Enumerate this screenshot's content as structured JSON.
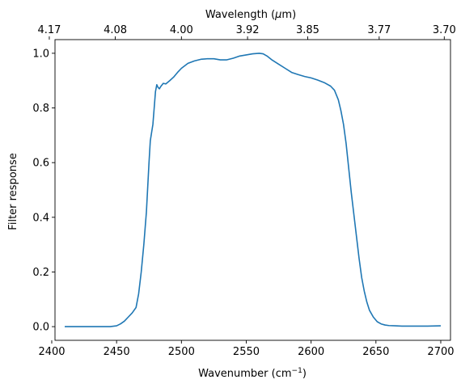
{
  "chart_data": {
    "type": "line",
    "xlabel": "Wavenumber (cm",
    "xlabel_sup": "−1",
    "xlabel_end": ")",
    "ylabel": "Filter response",
    "top_xlabel": "Wavelength (",
    "top_xlabel_mu": "μ",
    "top_xlabel_end": "m)",
    "xlim": [
      2402.5,
      2707.5
    ],
    "ylim": [
      -0.05,
      1.05
    ],
    "grid": false,
    "x_ticks": [
      2400,
      2450,
      2500,
      2550,
      2600,
      2650,
      2700
    ],
    "x_tick_labels": [
      "2400",
      "2450",
      "2500",
      "2550",
      "2600",
      "2650",
      "2700"
    ],
    "y_ticks": [
      0.0,
      0.2,
      0.4,
      0.6,
      0.8,
      1.0
    ],
    "y_tick_labels": [
      "0.0",
      "0.2",
      "0.4",
      "0.6",
      "0.8",
      "1.0"
    ],
    "top_x_tick_positions": [
      2398.1,
      2449.0,
      2500.0,
      2551.0,
      2597.4,
      2652.5,
      2702.7
    ],
    "top_x_tick_labels": [
      "4.17",
      "4.08",
      "4.00",
      "3.92",
      "3.85",
      "3.77",
      "3.70"
    ],
    "line_color": "#1f77b4",
    "series": [
      {
        "x": [
          2410,
          2420,
          2430,
          2440,
          2445,
          2450,
          2453,
          2456,
          2459,
          2462,
          2465,
          2467,
          2469,
          2471,
          2473,
          2475,
          2476,
          2477,
          2478,
          2480,
          2481,
          2482,
          2483,
          2484,
          2486,
          2488,
          2491,
          2494,
          2497,
          2500,
          2505,
          2510,
          2515,
          2520,
          2525,
          2530,
          2535,
          2540,
          2545,
          2550,
          2555,
          2560,
          2563,
          2566,
          2570,
          2575,
          2580,
          2585,
          2590,
          2595,
          2600,
          2605,
          2610,
          2615,
          2618,
          2621,
          2623,
          2625,
          2627,
          2629,
          2631,
          2633,
          2635,
          2637,
          2639,
          2641,
          2643,
          2645,
          2648,
          2651,
          2654,
          2657,
          2660,
          2665,
          2670,
          2680,
          2690,
          2700
        ],
        "y": [
          0.0,
          0.0,
          0.0,
          0.0,
          0.0,
          0.003,
          0.01,
          0.02,
          0.035,
          0.05,
          0.07,
          0.12,
          0.2,
          0.3,
          0.42,
          0.6,
          0.68,
          0.71,
          0.74,
          0.86,
          0.885,
          0.875,
          0.87,
          0.878,
          0.89,
          0.888,
          0.9,
          0.913,
          0.93,
          0.945,
          0.963,
          0.972,
          0.978,
          0.98,
          0.98,
          0.976,
          0.976,
          0.982,
          0.99,
          0.994,
          0.998,
          1.0,
          0.998,
          0.99,
          0.975,
          0.96,
          0.945,
          0.93,
          0.922,
          0.915,
          0.91,
          0.902,
          0.893,
          0.88,
          0.865,
          0.83,
          0.79,
          0.74,
          0.67,
          0.58,
          0.49,
          0.41,
          0.33,
          0.25,
          0.18,
          0.13,
          0.09,
          0.06,
          0.035,
          0.018,
          0.01,
          0.006,
          0.004,
          0.003,
          0.002,
          0.002,
          0.002,
          0.003
        ]
      }
    ]
  }
}
